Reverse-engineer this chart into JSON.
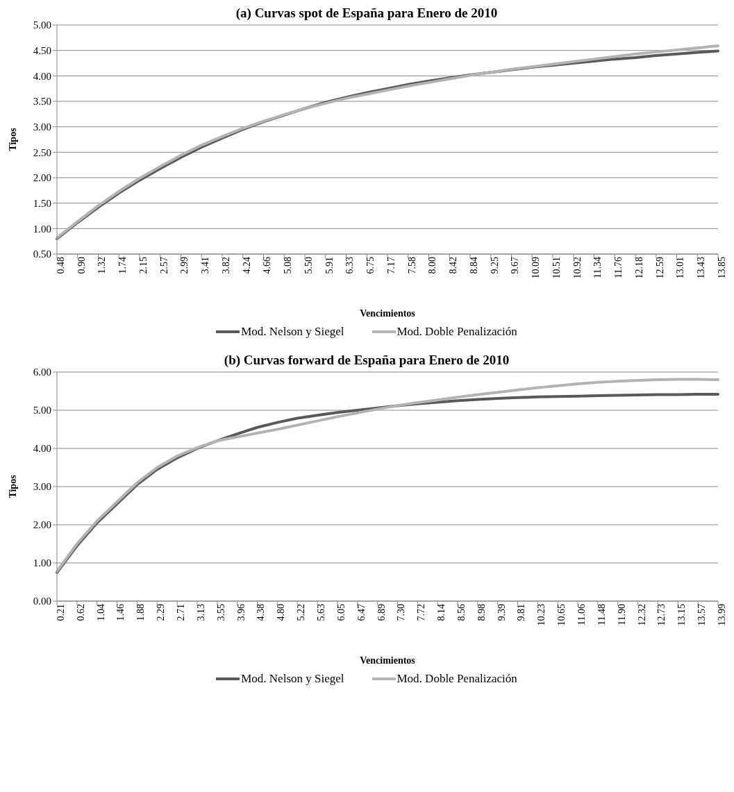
{
  "chart_data": [
    {
      "type": "line",
      "title": "(a) Curvas spot de España para Enero de 2010",
      "xlabel": "Vencimientos",
      "ylabel": "Tipos",
      "categories": [
        "0.48",
        "0.90",
        "1.32",
        "1.74",
        "2.15",
        "2.57",
        "2.99",
        "3.41",
        "3.82",
        "4.24",
        "4.66",
        "5.08",
        "5.50",
        "5.91",
        "6.33",
        "6.75",
        "7.17",
        "7.58",
        "8.00",
        "8.42",
        "8.84",
        "9.25",
        "9.67",
        "10.09",
        "10.51",
        "10.92",
        "11.34",
        "11.76",
        "12.18",
        "12.59",
        "13.01",
        "13.43",
        "13.85"
      ],
      "series": [
        {
          "name": "Mod. Nelson y Siegel",
          "color": "#595959",
          "values": [
            0.8,
            1.12,
            1.42,
            1.7,
            1.95,
            2.18,
            2.4,
            2.6,
            2.78,
            2.95,
            3.1,
            3.23,
            3.36,
            3.48,
            3.58,
            3.67,
            3.75,
            3.83,
            3.9,
            3.96,
            4.02,
            4.07,
            4.12,
            4.17,
            4.21,
            4.25,
            4.29,
            4.33,
            4.36,
            4.4,
            4.43,
            4.46,
            4.49
          ]
        },
        {
          "name": "Mod. Doble Penalización",
          "color": "#b3b3b3",
          "values": [
            0.82,
            1.14,
            1.45,
            1.73,
            1.99,
            2.22,
            2.44,
            2.64,
            2.81,
            2.97,
            3.11,
            3.24,
            3.36,
            3.46,
            3.56,
            3.64,
            3.72,
            3.8,
            3.87,
            3.94,
            4.01,
            4.07,
            4.13,
            4.18,
            4.23,
            4.28,
            4.33,
            4.38,
            4.43,
            4.47,
            4.51,
            4.55,
            4.59
          ]
        }
      ],
      "ylim": [
        0.5,
        5
      ],
      "yticks": [
        {
          "value": 0.5,
          "label": "0.50"
        },
        {
          "value": 1,
          "label": "1.00"
        },
        {
          "value": 1.5,
          "label": "1.50"
        },
        {
          "value": 2,
          "label": "2.00"
        },
        {
          "value": 2.5,
          "label": "2.50"
        },
        {
          "value": 3,
          "label": "3.00"
        },
        {
          "value": 3.5,
          "label": "3.50"
        },
        {
          "value": 4,
          "label": "4.00"
        },
        {
          "value": 4.5,
          "label": "4.50"
        },
        {
          "value": 5,
          "label": "5.00"
        }
      ],
      "grid": "y",
      "legend": "bottom",
      "marker": "none",
      "line_style": "solid"
    },
    {
      "type": "line",
      "title": "(b) Curvas forward de España para Enero de 2010",
      "xlabel": "Vencimientos",
      "ylabel": "Tipos",
      "categories": [
        "0.21",
        "0.62",
        "1.04",
        "1.46",
        "1.88",
        "2.29",
        "2.71",
        "3.13",
        "3.55",
        "3.96",
        "4.38",
        "4.80",
        "5.22",
        "5.63",
        "6.05",
        "6.47",
        "6.89",
        "7.30",
        "7.72",
        "8.14",
        "8.56",
        "8.98",
        "9.39",
        "9.81",
        "10.23",
        "10.65",
        "11.06",
        "11.48",
        "11.90",
        "12.32",
        "12.73",
        "13.15",
        "13.57",
        "13.99"
      ],
      "series": [
        {
          "name": "Mod. Nelson y Siegel",
          "color": "#595959",
          "values": [
            0.75,
            1.45,
            2.05,
            2.55,
            3.05,
            3.45,
            3.75,
            4.0,
            4.2,
            4.38,
            4.55,
            4.68,
            4.79,
            4.87,
            4.94,
            5.0,
            5.06,
            5.12,
            5.17,
            5.21,
            5.25,
            5.28,
            5.31,
            5.33,
            5.35,
            5.36,
            5.37,
            5.38,
            5.39,
            5.4,
            5.41,
            5.41,
            5.42,
            5.42
          ]
        },
        {
          "name": "Mod. Doble Penalización",
          "color": "#b3b3b3",
          "values": [
            0.78,
            1.5,
            2.1,
            2.6,
            3.1,
            3.5,
            3.8,
            4.02,
            4.2,
            4.3,
            4.4,
            4.5,
            4.61,
            4.72,
            4.83,
            4.93,
            5.03,
            5.12,
            5.2,
            5.27,
            5.34,
            5.41,
            5.47,
            5.53,
            5.59,
            5.64,
            5.69,
            5.73,
            5.76,
            5.78,
            5.8,
            5.81,
            5.81,
            5.8
          ]
        }
      ],
      "ylim": [
        0,
        6
      ],
      "yticks": [
        {
          "value": 0,
          "label": "0.00"
        },
        {
          "value": 1,
          "label": "1.00"
        },
        {
          "value": 2,
          "label": "2.00"
        },
        {
          "value": 3,
          "label": "3.00"
        },
        {
          "value": 4,
          "label": "4.00"
        },
        {
          "value": 5,
          "label": "5.00"
        },
        {
          "value": 6,
          "label": "6.00"
        }
      ],
      "grid": "y",
      "legend": "bottom",
      "marker": "none",
      "line_style": "solid"
    }
  ]
}
